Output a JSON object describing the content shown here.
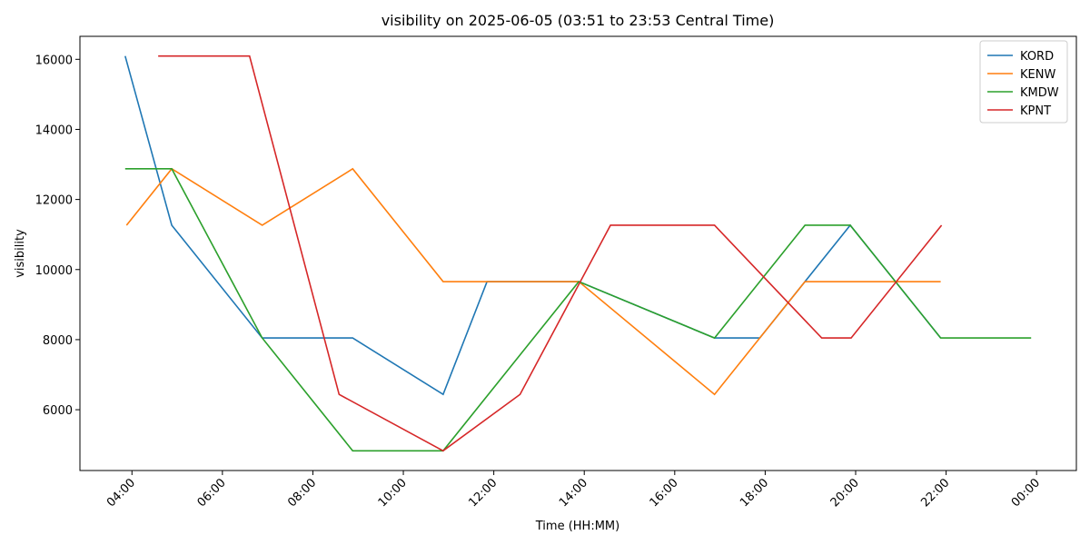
{
  "chart_data": {
    "type": "line",
    "title": "visibility on 2025-06-05 (03:51 to 23:53 Central Time)",
    "x_label": "Time (HH:MM)",
    "y_label": "visibility",
    "xlim": [
      2.85,
      24.88
    ],
    "ylim": [
      4265,
      16656
    ],
    "xticks": [
      {
        "value": 4,
        "label": "04:00"
      },
      {
        "value": 6,
        "label": "06:00"
      },
      {
        "value": 8,
        "label": "08:00"
      },
      {
        "value": 10,
        "label": "10:00"
      },
      {
        "value": 12,
        "label": "12:00"
      },
      {
        "value": 14,
        "label": "14:00"
      },
      {
        "value": 16,
        "label": "16:00"
      },
      {
        "value": 18,
        "label": "18:00"
      },
      {
        "value": 20,
        "label": "20:00"
      },
      {
        "value": 22,
        "label": "22:00"
      },
      {
        "value": 24,
        "label": "00:00"
      }
    ],
    "yticks": [
      6000,
      8000,
      10000,
      12000,
      14000,
      16000
    ],
    "legend": "upper right",
    "grid": false,
    "series": [
      {
        "name": "KORD",
        "color": "#1f77b4",
        "x": [
          3.85,
          4.88,
          6.88,
          8.88,
          10.88,
          11.85,
          13.88,
          16.88,
          17.88,
          19.88,
          21.88
        ],
        "values": [
          16093,
          11265,
          8047,
          8047,
          6437,
          9656,
          9656,
          8047,
          8047,
          11265,
          8047
        ]
      },
      {
        "name": "KENW",
        "color": "#ff7f0e",
        "x": [
          3.88,
          4.88,
          6.88,
          8.88,
          10.88,
          11.88,
          13.88,
          16.88,
          18.88,
          19.88,
          20.88,
          21.88
        ],
        "values": [
          11265,
          12875,
          11265,
          12875,
          9656,
          9656,
          9656,
          6437,
          9656,
          9656,
          9656,
          9656
        ]
      },
      {
        "name": "KMDW",
        "color": "#2ca02c",
        "x": [
          3.85,
          4.88,
          6.88,
          8.88,
          10.88,
          13.88,
          16.88,
          18.88,
          19.88,
          21.88,
          23.88
        ],
        "values": [
          12875,
          12875,
          8047,
          4828,
          4828,
          9656,
          8047,
          11265,
          11265,
          8047,
          8047
        ]
      },
      {
        "name": "KPNT",
        "color": "#d62728",
        "x": [
          4.58,
          6.6,
          8.58,
          10.88,
          12.58,
          14.58,
          16.88,
          19.25,
          19.9,
          21.9
        ],
        "values": [
          16093,
          16093,
          6437,
          4828,
          6437,
          11265,
          11265,
          8047,
          8047,
          11265
        ]
      }
    ]
  }
}
